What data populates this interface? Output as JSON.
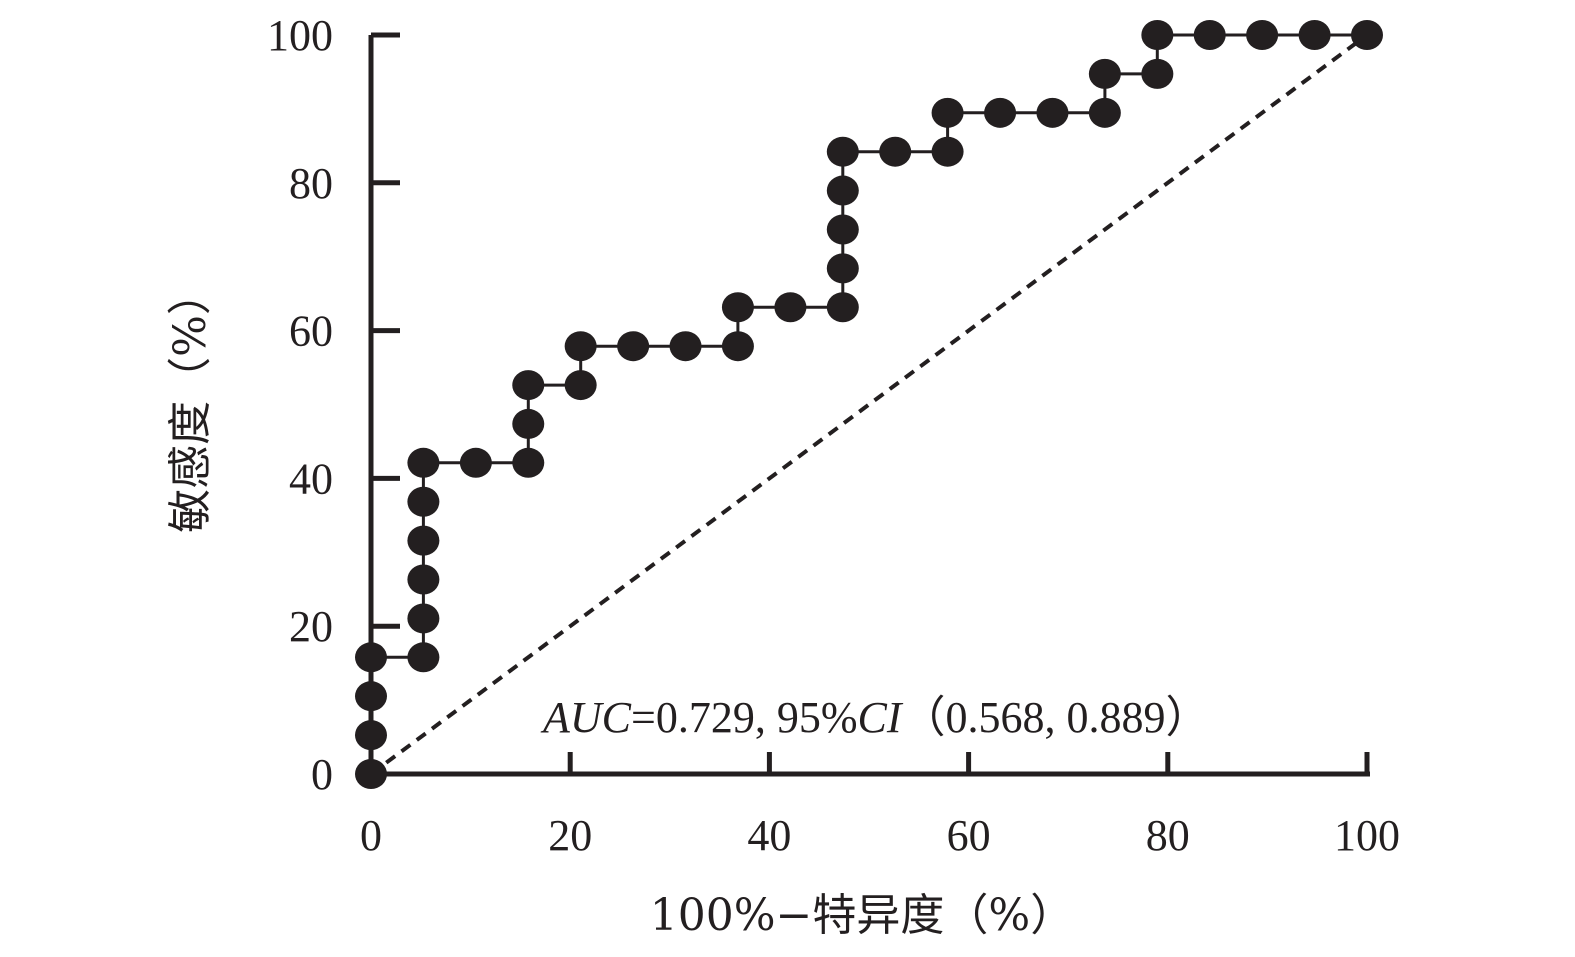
{
  "chart_data": {
    "type": "line",
    "title": "",
    "xlabel": "100%−特异度（%）",
    "ylabel": "敏感度（%）",
    "xlim": [
      0,
      100
    ],
    "ylim": [
      0,
      100
    ],
    "x_ticks": [
      0,
      20,
      40,
      60,
      80,
      100
    ],
    "y_ticks": [
      0,
      20,
      40,
      60,
      80,
      100
    ],
    "x_tick_labels": [
      "0",
      "20",
      "40",
      "60",
      "80",
      "100"
    ],
    "y_tick_labels": [
      "0",
      "20",
      "40",
      "60",
      "80",
      "100"
    ],
    "grid": false,
    "legend": "none",
    "annotation": {
      "parts": [
        {
          "text": "AUC",
          "italic": true
        },
        {
          "text": "=0.729, 95%",
          "italic": false
        },
        {
          "text": "CI",
          "italic": true
        },
        {
          "text": "（0.568, 0.889）",
          "italic": false
        }
      ]
    },
    "series": [
      {
        "style": "step",
        "color": "#231f20",
        "marker": "filled-circle",
        "points": [
          {
            "x": 0,
            "y": 0
          },
          {
            "x": 0,
            "y": 5.26
          },
          {
            "x": 0,
            "y": 10.53
          },
          {
            "x": 0,
            "y": 15.79
          },
          {
            "x": 5.26,
            "y": 15.79
          },
          {
            "x": 5.26,
            "y": 21.05
          },
          {
            "x": 5.26,
            "y": 26.32
          },
          {
            "x": 5.26,
            "y": 31.58
          },
          {
            "x": 5.26,
            "y": 36.84
          },
          {
            "x": 5.26,
            "y": 42.11
          },
          {
            "x": 10.53,
            "y": 42.11
          },
          {
            "x": 15.79,
            "y": 42.11
          },
          {
            "x": 15.79,
            "y": 47.37
          },
          {
            "x": 15.79,
            "y": 52.63
          },
          {
            "x": 21.05,
            "y": 52.63
          },
          {
            "x": 21.05,
            "y": 57.89
          },
          {
            "x": 26.32,
            "y": 57.89
          },
          {
            "x": 31.58,
            "y": 57.89
          },
          {
            "x": 36.84,
            "y": 57.89
          },
          {
            "x": 36.84,
            "y": 63.16
          },
          {
            "x": 42.11,
            "y": 63.16
          },
          {
            "x": 47.37,
            "y": 63.16
          },
          {
            "x": 47.37,
            "y": 68.42
          },
          {
            "x": 47.37,
            "y": 73.68
          },
          {
            "x": 47.37,
            "y": 78.95
          },
          {
            "x": 47.37,
            "y": 84.21
          },
          {
            "x": 52.63,
            "y": 84.21
          },
          {
            "x": 57.89,
            "y": 84.21
          },
          {
            "x": 57.89,
            "y": 89.47
          },
          {
            "x": 63.16,
            "y": 89.47
          },
          {
            "x": 68.42,
            "y": 89.47
          },
          {
            "x": 73.68,
            "y": 89.47
          },
          {
            "x": 73.68,
            "y": 94.74
          },
          {
            "x": 78.95,
            "y": 94.74
          },
          {
            "x": 78.95,
            "y": 100
          },
          {
            "x": 84.21,
            "y": 100
          },
          {
            "x": 89.47,
            "y": 100
          },
          {
            "x": 94.74,
            "y": 100
          },
          {
            "x": 100,
            "y": 100
          }
        ]
      },
      {
        "style": "dashed",
        "color": "#231f20",
        "marker": "none",
        "points": [
          {
            "x": 0,
            "y": 0
          },
          {
            "x": 100,
            "y": 100
          }
        ]
      }
    ]
  }
}
